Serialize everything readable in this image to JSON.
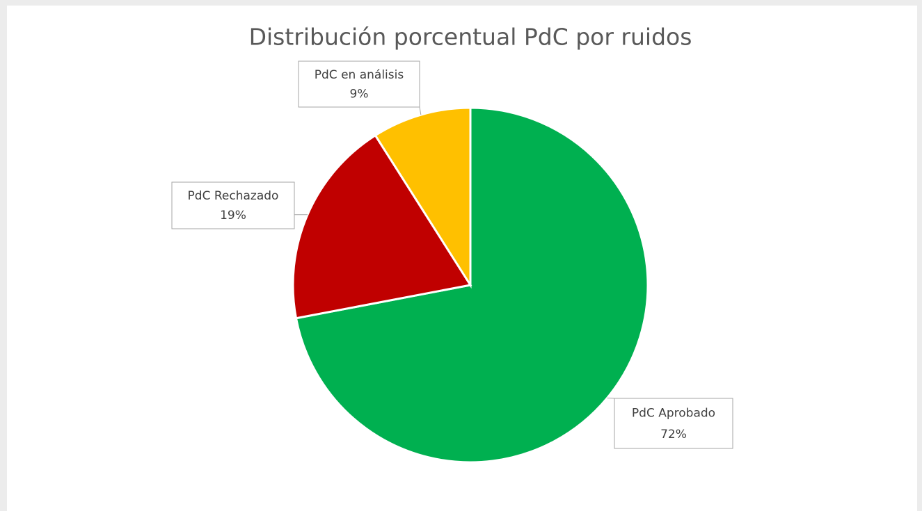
{
  "chart_data": {
    "type": "pie",
    "title": "Distribución porcentual PdC por ruidos",
    "categories": [
      "PdC Aprobado",
      "PdC Rechazado",
      "PdC en análisis"
    ],
    "values": [
      72,
      19,
      9
    ],
    "value_labels": [
      "72%",
      "19%",
      "9%"
    ],
    "colors": [
      "#00b050",
      "#c00000",
      "#ffc000"
    ]
  }
}
